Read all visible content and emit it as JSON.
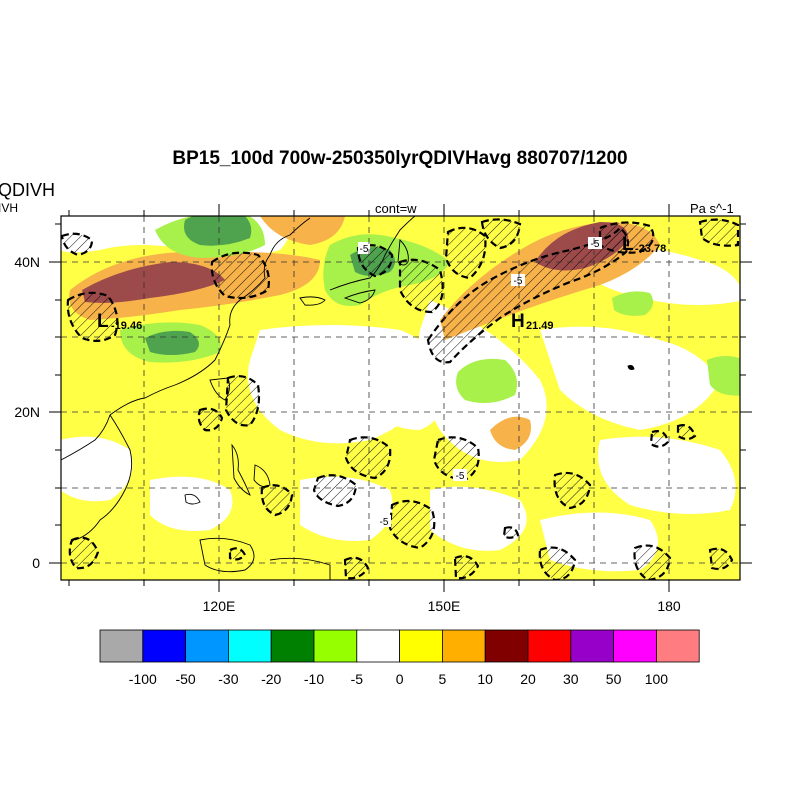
{
  "title": "BP15_100d 700w-250350lyrQDIVHavg  880707/1200",
  "left_string": "QDIVH",
  "left_substring": "IVH",
  "center_string": "cont=w",
  "right_string": "Pa s^-1",
  "y_axis": {
    "tick_labels": [
      "40N",
      "20N",
      "0"
    ]
  },
  "x_axis": {
    "tick_labels": [
      "120E",
      "150E",
      "180"
    ]
  },
  "markers": [
    {
      "type": "L",
      "value": "-19.46"
    },
    {
      "type": "H",
      "value": "21.49"
    },
    {
      "type": "L",
      "value": "-23.78"
    }
  ],
  "contour_labels": [
    "-5",
    "-5",
    "-5",
    "-5",
    "-5"
  ],
  "colorbar": {
    "colors": [
      "#a9a9a9",
      "#0000ff",
      "#0096ff",
      "#00ffff",
      "#008000",
      "#96ff00",
      "#ffffff",
      "#ffff00",
      "#ffaf00",
      "#800000",
      "#ff0000",
      "#9600c8",
      "#ff00ff",
      "#ff7d80"
    ],
    "labels": [
      "-100",
      "-50",
      "-30",
      "-20",
      "-10",
      "-5",
      "0",
      "5",
      "10",
      "20",
      "30",
      "50",
      "100"
    ]
  },
  "fill_colors": {
    "yellow": "#ffff46",
    "orange": "#f7b24a",
    "darkred": "#9d4a4a",
    "lightgreen": "#a8f04a",
    "green": "#4fa34f"
  }
}
